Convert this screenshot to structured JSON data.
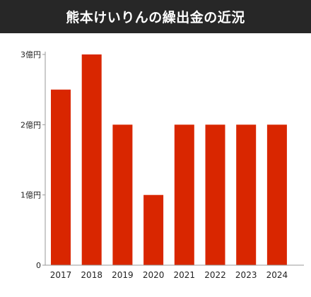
{
  "title": "熊本けいりんの繰出金の近況",
  "colors": {
    "header_bg": "#272727",
    "bar": "#d92600",
    "axis": "#9a9a9a",
    "text": "#222222"
  },
  "chart_data": {
    "type": "bar",
    "categories": [
      "2017",
      "2018",
      "2019",
      "2020",
      "2021",
      "2022",
      "2023",
      "2024"
    ],
    "values": [
      2.5,
      3,
      2,
      1,
      2,
      2,
      2,
      2
    ],
    "ylim": [
      0,
      3
    ],
    "yticks": [
      0,
      1,
      2,
      3
    ],
    "ytick_labels": [
      "0",
      "1億円",
      "2億円",
      "3億円"
    ],
    "grid": false
  }
}
